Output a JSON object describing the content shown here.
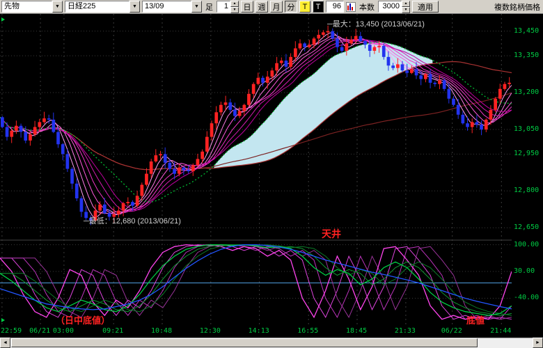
{
  "toolbar": {
    "instrument": "先物",
    "symbol": "日経225",
    "contract": "13/09",
    "bar_label": "足",
    "interval_value": "1",
    "period_buttons": [
      "日",
      "週",
      "月",
      "分"
    ],
    "tick_yellow": "T",
    "tick_black": "T",
    "bars_value": "96",
    "count_label": "本数",
    "count_value": "3000",
    "apply_label": "適用",
    "right_text": "複数銘柄価格"
  },
  "icons": {
    "dropdown": "▼",
    "spin_up": "▲",
    "spin_down": "▼",
    "scroll_left": "◄",
    "scroll_right": "►"
  },
  "annotations": {
    "max_label": "─最大：13,450 (2013/06/21)",
    "min_label": "─最低：12,680 (2013/06/21)",
    "ceiling": "天井",
    "intraday_bottom": "（日中底値）",
    "bottom": "底値"
  },
  "colors": {
    "background": "#000000",
    "grid": "#3a3a3a",
    "axis_text": "#00cc44",
    "candle_up": "#ff2222",
    "candle_down": "#2233ee",
    "cloud": "#c3e6f0",
    "ma_dotted": "#00bb33",
    "ma_long1": "#aa3333",
    "ma_long2": "#7c2222",
    "zero_line": "#4f9fe0",
    "ribbon": [
      "#ff9cf0",
      "#ff7ae6",
      "#ff58dc",
      "#f036c8",
      "#d81cb4",
      "#c000a0"
    ],
    "annotation_red": "#ff2222"
  },
  "chart_data": {
    "type": "candlestick",
    "instrument": "日経225 先物 13/09",
    "price_panel": {
      "ylim": [
        12600,
        13520
      ],
      "max_price": 13450,
      "min_price": 12680,
      "ticks": [
        {
          "label": "13,450",
          "value": 13450
        },
        {
          "label": "13,350",
          "value": 13350
        },
        {
          "label": "13,200",
          "value": 13200
        },
        {
          "label": "13,050",
          "value": 13050
        },
        {
          "label": "12,950",
          "value": 12950
        },
        {
          "label": "12,800",
          "value": 12800
        },
        {
          "label": "12,650",
          "value": 12650
        }
      ],
      "closes": [
        13100,
        13060,
        13020,
        13045,
        13065,
        13040,
        13005,
        13030,
        13060,
        13080,
        13095,
        13090,
        13040,
        12990,
        12950,
        12890,
        12830,
        12770,
        12715,
        12690,
        12680,
        12720,
        12745,
        12710,
        12695,
        12705,
        12720,
        12750,
        12755,
        12740,
        12780,
        12825,
        12870,
        12920,
        12945,
        12950,
        12915,
        12890,
        12870,
        12895,
        12885,
        12880,
        12905,
        12930,
        12960,
        13020,
        13075,
        13120,
        13150,
        13160,
        13130,
        13105,
        13125,
        13150,
        13195,
        13235,
        13260,
        13240,
        13265,
        13290,
        13320,
        13330,
        13305,
        13345,
        13380,
        13400,
        13385,
        13395,
        13420,
        13435,
        13445,
        13450,
        13420,
        13385,
        13370,
        13400,
        13415,
        13430,
        13410,
        13395,
        13370,
        13385,
        13390,
        13345,
        13310,
        13300,
        13315,
        13290,
        13280,
        13295,
        13270,
        13255,
        13275,
        13240,
        13235,
        13250,
        13215,
        13175,
        13150,
        13110,
        13075,
        13060,
        13080,
        13070,
        13050,
        13090,
        13130,
        13175,
        13215,
        13235,
        13240
      ]
    },
    "indicator_panel": {
      "type": "line",
      "name": "RCI",
      "ylim": [
        -112,
        112
      ],
      "zero_line": 0,
      "ticks": [
        {
          "label": "100.00",
          "value": 100
        },
        {
          "label": "30.00",
          "value": 30
        },
        {
          "label": "-40.00",
          "value": -40
        }
      ],
      "series": [
        {
          "name": "rci-short",
          "color": "#ff44ee",
          "values": [
            65,
            30,
            -30,
            -75,
            -90,
            -40,
            35,
            20,
            -50,
            -85,
            -45,
            -65,
            -20,
            40,
            80,
            95,
            100,
            98,
            100,
            95,
            85,
            95,
            90,
            70,
            85,
            60,
            -40,
            -90,
            -20,
            70,
            10,
            -70,
            -10,
            90,
            95,
            60,
            20,
            -60,
            -95,
            -85,
            -95,
            -90,
            -95,
            -60,
            30
          ]
        },
        {
          "name": "rci-mid",
          "color": "#00cc44",
          "values": [
            25,
            5,
            -20,
            -45,
            -65,
            -75,
            -60,
            -45,
            -55,
            -70,
            -75,
            -60,
            -30,
            10,
            45,
            70,
            88,
            96,
            100,
            100,
            98,
            100,
            97,
            92,
            95,
            90,
            70,
            40,
            20,
            35,
            25,
            -5,
            10,
            40,
            55,
            40,
            10,
            -25,
            -50,
            -65,
            -75,
            -80,
            -85,
            -80,
            -60
          ]
        },
        {
          "name": "rci-long",
          "color": "#2255ff",
          "values": [
            -15,
            -25,
            -35,
            -45,
            -55,
            -60,
            -65,
            -68,
            -70,
            -68,
            -62,
            -55,
            -45,
            -30,
            -10,
            15,
            38,
            58,
            75,
            88,
            96,
            100,
            100,
            98,
            94,
            88,
            80,
            70,
            60,
            52,
            44,
            36,
            28,
            22,
            15,
            8,
            0,
            -10,
            -20,
            -30,
            -40,
            -48,
            -55,
            -62,
            -68
          ]
        }
      ]
    },
    "time_axis": [
      {
        "label": "22:59",
        "pos": 0.004
      },
      {
        "label": "06/21",
        "pos": 0.079
      },
      {
        "label": "03:00",
        "pos": 0.125
      },
      {
        "label": "09:21",
        "pos": 0.222
      },
      {
        "label": "10:48",
        "pos": 0.317
      },
      {
        "label": "12:30",
        "pos": 0.412
      },
      {
        "label": "14:13",
        "pos": 0.507
      },
      {
        "label": "16:55",
        "pos": 0.603
      },
      {
        "label": "18:45",
        "pos": 0.698
      },
      {
        "label": "21:33",
        "pos": 0.793
      },
      {
        "label": "06/22",
        "pos": 0.884
      },
      {
        "label": "21:44",
        "pos": 0.98
      }
    ]
  }
}
